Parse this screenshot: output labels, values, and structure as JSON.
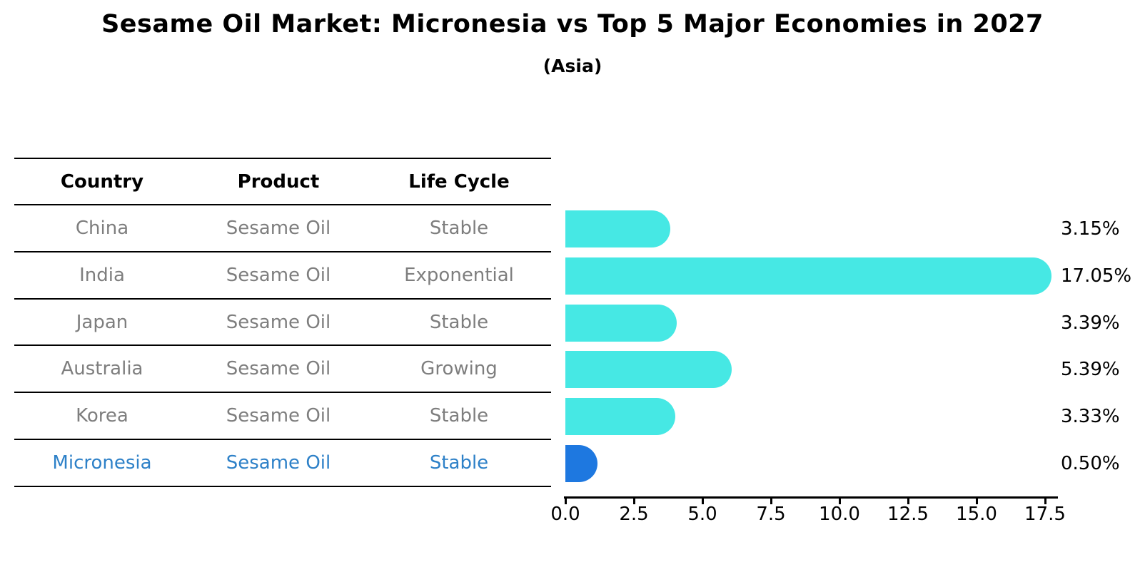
{
  "chart_data": {
    "type": "bar",
    "orientation": "horizontal",
    "title": "Sesame Oil Market: Micronesia vs Top 5 Major Economies in 2027",
    "subtitle": "(Asia)",
    "categories": [
      "China",
      "India",
      "Japan",
      "Australia",
      "Korea",
      "Micronesia"
    ],
    "values": [
      3.15,
      17.05,
      3.39,
      5.39,
      3.33,
      0.5
    ],
    "value_labels": [
      "3.15%",
      "17.05%",
      "3.39%",
      "5.39%",
      "3.33%",
      "0.50%"
    ],
    "x_ticks": [
      "0.0",
      "2.5",
      "5.0",
      "7.5",
      "10.0",
      "12.5",
      "15.0",
      "17.5"
    ],
    "xlim": [
      0,
      17.5
    ],
    "grid": false,
    "legend": false,
    "highlight_index": 5,
    "table": {
      "headers": [
        "Country",
        "Product",
        "Life Cycle"
      ],
      "rows": [
        {
          "country": "China",
          "product": "Sesame Oil",
          "life_cycle": "Stable",
          "highlighted": false
        },
        {
          "country": "India",
          "product": "Sesame Oil",
          "life_cycle": "Exponential",
          "highlighted": false
        },
        {
          "country": "Japan",
          "product": "Sesame Oil",
          "life_cycle": "Stable",
          "highlighted": false
        },
        {
          "country": "Australia",
          "product": "Sesame Oil",
          "life_cycle": "Growing",
          "highlighted": false
        },
        {
          "country": "Korea",
          "product": "Sesame Oil",
          "life_cycle": "Stable",
          "highlighted": false
        },
        {
          "country": "Micronesia",
          "product": "Sesame Oil",
          "life_cycle": "Stable",
          "highlighted": true
        }
      ]
    }
  },
  "colors": {
    "bar": "#46e8e4",
    "highlight_bar": "#1e78e0",
    "highlight_text": "#2e81c8",
    "muted_text": "#7e7e7e",
    "text": "#000000"
  }
}
